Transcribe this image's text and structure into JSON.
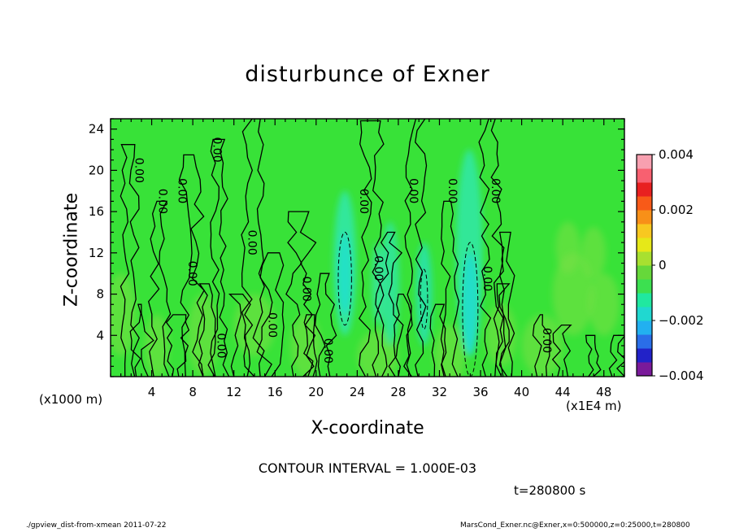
{
  "chart_data": {
    "type": "heatmap",
    "title": "disturbunce of Exner",
    "xlabel": "X-coordinate",
    "ylabel": "Z-coordinate",
    "x_unit_label": "(x1000 m)",
    "x_scale_label": "(x1E4 m)",
    "xlim": [
      0,
      50
    ],
    "ylim": [
      0,
      25
    ],
    "x_ticks": [
      4,
      8,
      12,
      16,
      20,
      24,
      28,
      32,
      36,
      40,
      44,
      48
    ],
    "y_ticks": [
      4,
      8,
      12,
      16,
      20,
      24
    ],
    "colorbar": {
      "min": -0.004,
      "max": 0.004,
      "tick_values": [
        0.004,
        0.002,
        0,
        -0.002,
        -0.004
      ],
      "tick_labels": [
        "0.004",
        "0.002",
        "0",
        "−0.002",
        "−0.004"
      ],
      "colors": [
        "#7a1a9a",
        "#2222c8",
        "#2a6ee8",
        "#22b0f0",
        "#20d8d0",
        "#20e8a0",
        "#3ce050",
        "#66d83a",
        "#a8e030",
        "#e6e818",
        "#f8c820",
        "#f89018",
        "#f85a18",
        "#e82020",
        "#f86070",
        "#f8a0b0"
      ]
    },
    "contour_interval": "CONTOUR INTERVAL = 1.000E-03",
    "contour_labels": [
      "0.00",
      "0.00",
      "0.00",
      "0.00",
      "0.00",
      "0.00",
      "0.00",
      "0.00",
      "0.00",
      "0.00",
      "0.00",
      "0.00",
      "0.00",
      "0.00",
      "0.00",
      "0.00",
      "0.00"
    ],
    "negative_regions": [
      {
        "x": 22.8,
        "z": 9.5,
        "value": -0.001
      },
      {
        "x": 30.5,
        "z": 7.5,
        "value": -0.001
      },
      {
        "x": 35.0,
        "z": 6.5,
        "value": -0.001
      }
    ],
    "time_label": "t=280800 s"
  },
  "footer": {
    "left": "./gpview_dist-from-xmean  2011-07-22",
    "right": "MarsCond_Exner.nc@Exner,x=0:500000,z=0:25000,t=280800"
  },
  "colors": {
    "background": "#38e238",
    "contour": "#000000"
  }
}
